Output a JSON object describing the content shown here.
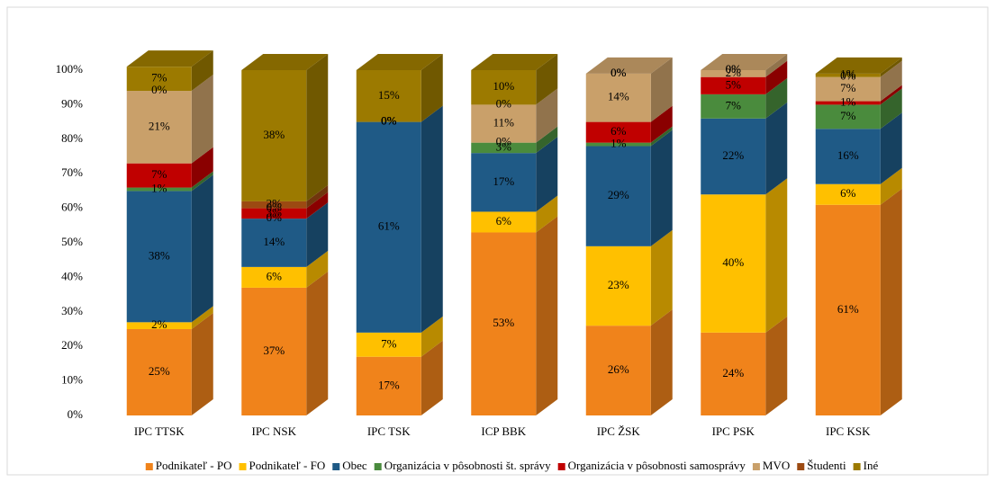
{
  "chart_data": {
    "type": "bar3d_stacked",
    "categories": [
      "IPC TTSK",
      "IPC NSK",
      "IPC TSK",
      "ICP BBK",
      "IPC ŽSK",
      "IPC PSK",
      "IPC KSK"
    ],
    "ylim": [
      0,
      100
    ],
    "yticks": [
      {
        "value": 0,
        "label": "0%"
      },
      {
        "value": 10,
        "label": "10%"
      },
      {
        "value": 20,
        "label": "20%"
      },
      {
        "value": 30,
        "label": "30%"
      },
      {
        "value": 40,
        "label": "40%"
      },
      {
        "value": 50,
        "label": "50%"
      },
      {
        "value": 60,
        "label": "60%"
      },
      {
        "value": 70,
        "label": "70%"
      },
      {
        "value": 80,
        "label": "80%"
      },
      {
        "value": 90,
        "label": "90%"
      },
      {
        "value": 100,
        "label": "100%"
      }
    ],
    "series": [
      {
        "name": "Podnikateľ - PO",
        "color": "#f0831b",
        "values": [
          25,
          37,
          17,
          53,
          26,
          24,
          61
        ],
        "value_labels": [
          "25%",
          "37%",
          "17%",
          "53%",
          "26%",
          "24%",
          "61%"
        ]
      },
      {
        "name": "Podnikateľ - FO",
        "color": "#ffc000",
        "values": [
          2,
          6,
          7,
          6,
          23,
          40,
          6
        ],
        "value_labels": [
          "2%",
          "6%",
          "7%",
          "6%",
          "23%",
          "40%",
          "6%"
        ]
      },
      {
        "name": "Obec",
        "color": "#1f5a86",
        "values": [
          38,
          14,
          61,
          17,
          29,
          22,
          16
        ],
        "value_labels": [
          "38%",
          "14%",
          "61%",
          "17%",
          "29%",
          "22%",
          "16%"
        ]
      },
      {
        "name": "Organizácia v pôsobnosti št. správy",
        "color": "#4a8b3d",
        "values": [
          1,
          0,
          0,
          3,
          1,
          7,
          7
        ],
        "value_labels": [
          "1%",
          "0%",
          "0%",
          "3%",
          "1%",
          "7%",
          "7%"
        ]
      },
      {
        "name": "Organizácia v pôsobnosti samosprávy",
        "color": "#c00000",
        "values": [
          7,
          3,
          0,
          0,
          6,
          5,
          1
        ],
        "value_labels": [
          "7%",
          "3%",
          "0%",
          "0%",
          "6%",
          "5%",
          "1%"
        ]
      },
      {
        "name": "MVO",
        "color": "#c9a06a",
        "values": [
          21,
          0,
          0,
          11,
          14,
          2,
          7
        ],
        "value_labels": [
          "21%",
          "0%",
          "0%",
          "11%",
          "14%",
          "2%",
          "7%"
        ]
      },
      {
        "name": "Študenti",
        "color": "#9c4a12",
        "values": [
          0,
          2,
          0,
          0,
          0,
          0,
          0
        ],
        "value_labels": [
          "0%",
          "2%",
          "0%",
          "0%",
          "0%",
          "0%",
          "0%"
        ]
      },
      {
        "name": "Iné",
        "color": "#9c7a00",
        "values": [
          7,
          38,
          15,
          10,
          0,
          0,
          1
        ],
        "value_labels": [
          "7%",
          "38%",
          "15%",
          "10%",
          "0%",
          "0%",
          "1%"
        ]
      }
    ]
  }
}
